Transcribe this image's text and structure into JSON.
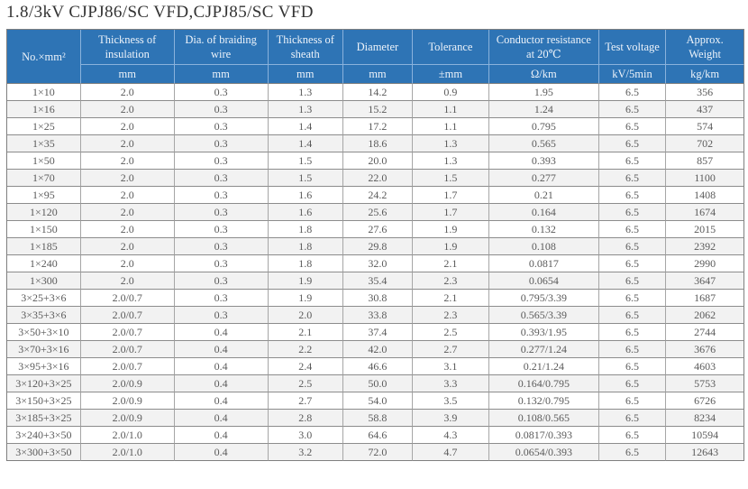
{
  "title": "1.8/3kV CJPJ86/SC VFD,CJPJ85/SC VFD",
  "colors": {
    "header_bg": "#2e74b5",
    "header_text": "#edf3fa",
    "header_divider": "#8ab2dc",
    "row_alt_bg": "#f2f2f2",
    "row_bg": "#ffffff",
    "grid_h": "#8c8c8c",
    "grid_v": "#a6a6a6",
    "outer_border": "#7f7f7f",
    "cell_text": "#5a5a5a",
    "title_text": "#333333"
  },
  "table": {
    "columns": [
      {
        "label": "No.×mm²",
        "unit": ""
      },
      {
        "label": "Thickness of insulation",
        "unit": "mm"
      },
      {
        "label": "Dia. of braiding wire",
        "unit": "mm"
      },
      {
        "label": "Thickness of sheath",
        "unit": "mm"
      },
      {
        "label": "Diameter",
        "unit": "mm"
      },
      {
        "label": "Tolerance",
        "unit": "±mm"
      },
      {
        "label": "Conductor resistance at 20℃",
        "unit": "Ω/km"
      },
      {
        "label": "Test voltage",
        "unit": "kV/5min"
      },
      {
        "label": "Approx. Weight",
        "unit": "kg/km"
      }
    ],
    "rows": [
      [
        "1×10",
        "2.0",
        "0.3",
        "1.3",
        "14.2",
        "0.9",
        "1.95",
        "6.5",
        "356"
      ],
      [
        "1×16",
        "2.0",
        "0.3",
        "1.3",
        "15.2",
        "1.1",
        "1.24",
        "6.5",
        "437"
      ],
      [
        "1×25",
        "2.0",
        "0.3",
        "1.4",
        "17.2",
        "1.1",
        "0.795",
        "6.5",
        "574"
      ],
      [
        "1×35",
        "2.0",
        "0.3",
        "1.4",
        "18.6",
        "1.3",
        "0.565",
        "6.5",
        "702"
      ],
      [
        "1×50",
        "2.0",
        "0.3",
        "1.5",
        "20.0",
        "1.3",
        "0.393",
        "6.5",
        "857"
      ],
      [
        "1×70",
        "2.0",
        "0.3",
        "1.5",
        "22.0",
        "1.5",
        "0.277",
        "6.5",
        "1100"
      ],
      [
        "1×95",
        "2.0",
        "0.3",
        "1.6",
        "24.2",
        "1.7",
        "0.21",
        "6.5",
        "1408"
      ],
      [
        "1×120",
        "2.0",
        "0.3",
        "1.6",
        "25.6",
        "1.7",
        "0.164",
        "6.5",
        "1674"
      ],
      [
        "1×150",
        "2.0",
        "0.3",
        "1.8",
        "27.6",
        "1.9",
        "0.132",
        "6.5",
        "2015"
      ],
      [
        "1×185",
        "2.0",
        "0.3",
        "1.8",
        "29.8",
        "1.9",
        "0.108",
        "6.5",
        "2392"
      ],
      [
        "1×240",
        "2.0",
        "0.3",
        "1.8",
        "32.0",
        "2.1",
        "0.0817",
        "6.5",
        "2990"
      ],
      [
        "1×300",
        "2.0",
        "0.3",
        "1.9",
        "35.4",
        "2.3",
        "0.0654",
        "6.5",
        "3647"
      ],
      [
        "3×25+3×6",
        "2.0/0.7",
        "0.3",
        "1.9",
        "30.8",
        "2.1",
        "0.795/3.39",
        "6.5",
        "1687"
      ],
      [
        "3×35+3×6",
        "2.0/0.7",
        "0.3",
        "2.0",
        "33.8",
        "2.3",
        "0.565/3.39",
        "6.5",
        "2062"
      ],
      [
        "3×50+3×10",
        "2.0/0.7",
        "0.4",
        "2.1",
        "37.4",
        "2.5",
        "0.393/1.95",
        "6.5",
        "2744"
      ],
      [
        "3×70+3×16",
        "2.0/0.7",
        "0.4",
        "2.2",
        "42.0",
        "2.7",
        "0.277/1.24",
        "6.5",
        "3676"
      ],
      [
        "3×95+3×16",
        "2.0/0.7",
        "0.4",
        "2.4",
        "46.6",
        "3.1",
        "0.21/1.24",
        "6.5",
        "4603"
      ],
      [
        "3×120+3×25",
        "2.0/0.9",
        "0.4",
        "2.5",
        "50.0",
        "3.3",
        "0.164/0.795",
        "6.5",
        "5753"
      ],
      [
        "3×150+3×25",
        "2.0/0.9",
        "0.4",
        "2.7",
        "54.0",
        "3.5",
        "0.132/0.795",
        "6.5",
        "6726"
      ],
      [
        "3×185+3×25",
        "2.0/0.9",
        "0.4",
        "2.8",
        "58.8",
        "3.9",
        "0.108/0.565",
        "6.5",
        "8234"
      ],
      [
        "3×240+3×50",
        "2.0/1.0",
        "0.4",
        "3.0",
        "64.6",
        "4.3",
        "0.0817/0.393",
        "6.5",
        "10594"
      ],
      [
        "3×300+3×50",
        "2.0/1.0",
        "0.4",
        "3.2",
        "72.0",
        "4.7",
        "0.0654/0.393",
        "6.5",
        "12643"
      ]
    ]
  }
}
